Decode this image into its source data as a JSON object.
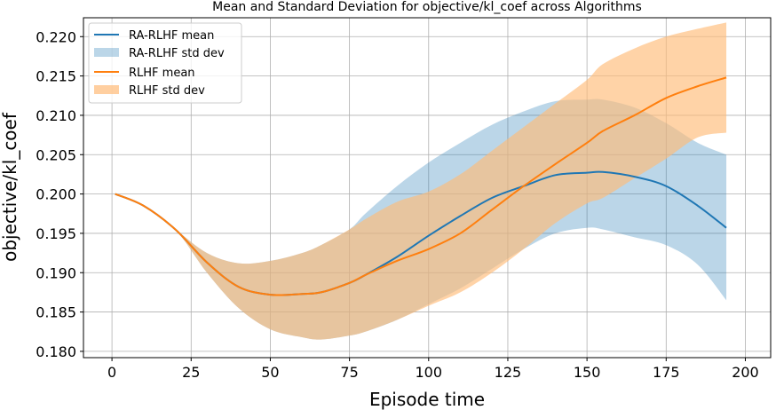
{
  "chart_data": {
    "type": "line",
    "title": "Mean and Standard Deviation for objective/kl_coef across Algorithms",
    "xlabel": "Episode time",
    "ylabel": "objective/kl_coef",
    "xlim": [
      -9,
      208
    ],
    "ylim": [
      0.1792,
      0.2224
    ],
    "xticks": [
      0,
      25,
      50,
      75,
      100,
      125,
      150,
      175,
      200
    ],
    "yticks": [
      0.18,
      0.185,
      0.19,
      0.195,
      0.2,
      0.205,
      0.21,
      0.215,
      0.22
    ],
    "grid": true,
    "legend_position": "upper-left",
    "legend": [
      "RA-RLHF mean",
      "RA-RLHF std dev",
      "RLHF mean",
      "RLHF std dev"
    ],
    "series": [
      {
        "name": "RA-RLHF",
        "color": "#1f77b4",
        "band_color": "#1f77b4",
        "x": [
          1,
          10,
          20,
          30,
          40,
          50,
          60,
          66,
          75,
          80,
          90,
          100,
          110,
          120,
          130,
          140,
          150,
          155,
          165,
          175,
          185,
          194
        ],
        "mean": [
          0.2,
          0.1985,
          0.1955,
          0.1913,
          0.1882,
          0.1872,
          0.1873,
          0.1875,
          0.1887,
          0.1897,
          0.192,
          0.1947,
          0.1972,
          0.1995,
          0.201,
          0.2024,
          0.2027,
          0.2028,
          0.2022,
          0.201,
          0.1985,
          0.1957
        ],
        "lower": [
          0.2,
          0.1985,
          0.1955,
          0.19,
          0.1855,
          0.1828,
          0.1818,
          0.1815,
          0.182,
          0.1825,
          0.184,
          0.186,
          0.188,
          0.1905,
          0.193,
          0.195,
          0.1957,
          0.1955,
          0.1945,
          0.1935,
          0.191,
          0.1865
        ],
        "upper": [
          0.2,
          0.1985,
          0.1955,
          0.1925,
          0.1912,
          0.1915,
          0.1925,
          0.1935,
          0.1955,
          0.1975,
          0.201,
          0.204,
          0.2065,
          0.2088,
          0.2105,
          0.2118,
          0.212,
          0.212,
          0.211,
          0.209,
          0.2065,
          0.205
        ]
      },
      {
        "name": "RLHF",
        "color": "#ff7f0e",
        "band_color": "#ffbb78",
        "x": [
          1,
          10,
          20,
          30,
          40,
          50,
          60,
          66,
          75,
          80,
          90,
          100,
          110,
          120,
          130,
          140,
          150,
          155,
          165,
          175,
          185,
          194
        ],
        "mean": [
          0.2,
          0.1985,
          0.1955,
          0.1913,
          0.1882,
          0.1872,
          0.1873,
          0.1875,
          0.1887,
          0.1897,
          0.1915,
          0.193,
          0.195,
          0.198,
          0.201,
          0.2038,
          0.2065,
          0.208,
          0.21,
          0.2122,
          0.2137,
          0.2148
        ],
        "lower": [
          0.2,
          0.1985,
          0.1955,
          0.19,
          0.1855,
          0.1828,
          0.1818,
          0.1815,
          0.182,
          0.1825,
          0.184,
          0.1858,
          0.1875,
          0.19,
          0.193,
          0.1963,
          0.1988,
          0.1995,
          0.202,
          0.2045,
          0.2072,
          0.2078
        ],
        "upper": [
          0.2,
          0.1985,
          0.1955,
          0.1925,
          0.1912,
          0.1915,
          0.1925,
          0.1935,
          0.1955,
          0.1968,
          0.199,
          0.2003,
          0.2025,
          0.2055,
          0.2085,
          0.2115,
          0.2145,
          0.2165,
          0.2185,
          0.22,
          0.221,
          0.2218
        ]
      }
    ]
  }
}
